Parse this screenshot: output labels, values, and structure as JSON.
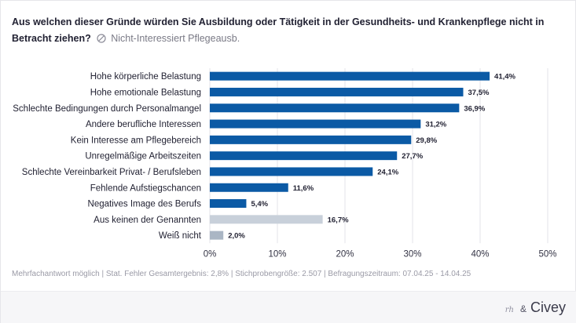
{
  "header": {
    "question": "Aus welchen dieser Gründe würden Sie Ausbildung oder Tätigkeit in der Gesundheits- und Krankenpflege nicht in Betracht ziehen?",
    "filter_label": "Nicht-Interessiert Pflegeausb."
  },
  "chart_data": {
    "type": "bar",
    "orientation": "horizontal",
    "title": "Aus welchen dieser Gründe würden Sie Ausbildung oder Tätigkeit in der Gesundheits- und Krankenpflege nicht in Betracht ziehen?",
    "xlabel": "",
    "ylabel": "",
    "xlim": [
      0,
      50
    ],
    "xticks": [
      "0%",
      "10%",
      "20%",
      "30%",
      "40%",
      "50%"
    ],
    "grid": true,
    "categories": [
      "Hohe körperliche Belastung",
      "Hohe emotionale Belastung",
      "Schlechte Bedingungen durch Personalmangel",
      "Andere berufliche Interessen",
      "Kein Interesse am Pflegebereich",
      "Unregelmäßige Arbeitszeiten",
      "Schlechte Vereinbarkeit Privat- / Berufsleben",
      "Fehlende Aufstiegschancen",
      "Negatives Image des Berufs",
      "Aus keinen der Genannten",
      "Weiß nicht"
    ],
    "values": [
      41.4,
      37.5,
      36.9,
      31.2,
      29.8,
      27.7,
      24.1,
      11.6,
      5.4,
      16.7,
      2.0
    ],
    "value_labels": [
      "41,4%",
      "37,5%",
      "36,9%",
      "31,2%",
      "29,8%",
      "27,7%",
      "24,1%",
      "11,6%",
      "5,4%",
      "16,7%",
      "2,0%"
    ],
    "colors": [
      "#0b5aa5",
      "#0b5aa5",
      "#0b5aa5",
      "#0b5aa5",
      "#0b5aa5",
      "#0b5aa5",
      "#0b5aa5",
      "#0b5aa5",
      "#0b5aa5",
      "#c8d0da",
      "#aab6c4"
    ]
  },
  "footnote": "Mehrfachantwort möglich | Stat. Fehler Gesamtergebnis: 2,8% | Stichprobengröße: 2.507 | Befragungszeitraum: 07.04.25 - 14.04.25",
  "footer": {
    "rh_mark": "rh",
    "ampersand": "&",
    "brand": "Civey"
  }
}
